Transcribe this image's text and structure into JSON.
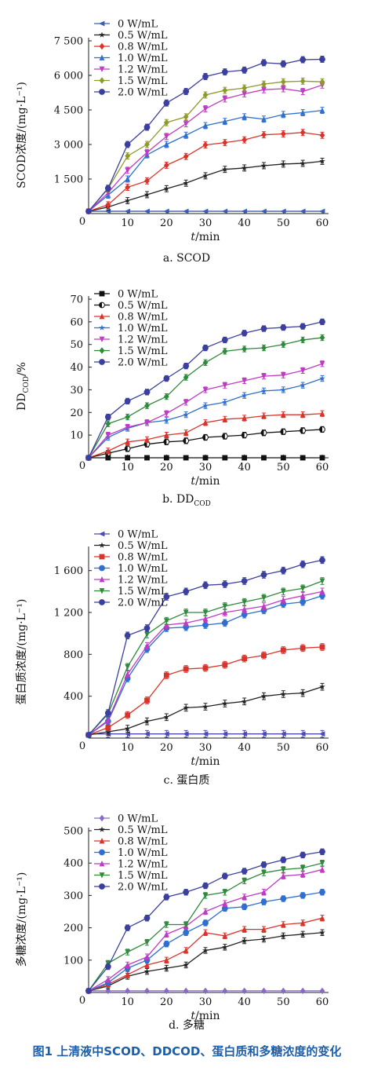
{
  "figure_caption": "图1 上清液中SCOD、DDCOD、蛋白质和多糖浓度的变化",
  "chart_data": [
    {
      "type": "line",
      "subtitle": "a. SCOD",
      "xlabel": "t/min",
      "ylabel": "SCOD浓度/(mg·L⁻¹)",
      "xlim": [
        0,
        60
      ],
      "ylim": [
        0,
        7500
      ],
      "xticks": [
        0,
        10,
        20,
        30,
        40,
        50,
        60
      ],
      "yticks": [
        0,
        1500,
        3000,
        4500,
        6000,
        7500
      ],
      "ytick_labels": [
        "0",
        "1 500",
        "3 000",
        "4 500",
        "6 000",
        "7 500"
      ],
      "legend_position": "top-left",
      "x": [
        0,
        5,
        10,
        15,
        20,
        25,
        30,
        35,
        40,
        45,
        50,
        55,
        60
      ],
      "series": [
        {
          "name": "0 W/mL",
          "color": "#3b5fb0",
          "marker": "tri-left",
          "values": [
            100,
            100,
            100,
            100,
            100,
            100,
            100,
            100,
            100,
            100,
            100,
            100,
            100
          ]
        },
        {
          "name": "0.5 W/mL",
          "color": "#222222",
          "marker": "star",
          "values": [
            100,
            280,
            560,
            820,
            1080,
            1320,
            1640,
            1920,
            1980,
            2080,
            2150,
            2180,
            2270
          ]
        },
        {
          "name": "0.8 W/mL",
          "color": "#d9342b",
          "marker": "diamond",
          "values": [
            100,
            380,
            1140,
            1420,
            2100,
            2480,
            2980,
            3080,
            3200,
            3420,
            3460,
            3520,
            3400
          ]
        },
        {
          "name": "1.0 W/mL",
          "color": "#2e6fcf",
          "marker": "triangle",
          "values": [
            100,
            800,
            1500,
            2550,
            3000,
            3400,
            3820,
            4000,
            4200,
            4100,
            4300,
            4380,
            4480
          ]
        },
        {
          "name": "1.2 W/mL",
          "color": "#c03bc3",
          "marker": "tri-down",
          "values": [
            100,
            900,
            1880,
            2650,
            3350,
            3900,
            4550,
            4980,
            5200,
            5380,
            5420,
            5300,
            5580
          ]
        },
        {
          "name": "1.5 W/mL",
          "color": "#8f9a2c",
          "marker": "diamond",
          "values": [
            100,
            1080,
            2500,
            3000,
            3950,
            4200,
            5150,
            5350,
            5450,
            5620,
            5720,
            5750,
            5720
          ]
        },
        {
          "name": "2.0 W/mL",
          "color": "#3b3f9e",
          "marker": "circle",
          "values": [
            100,
            1100,
            3000,
            3750,
            4800,
            5300,
            5950,
            6150,
            6230,
            6550,
            6500,
            6680,
            6700
          ]
        }
      ]
    },
    {
      "type": "line",
      "subtitle": "b. DD",
      "subtitle_sub": "COD",
      "xlabel": "t/min",
      "ylabel": "DD",
      "ylabel_sub": "COD",
      "ylabel_suffix": "/%",
      "xlim": [
        0,
        60
      ],
      "ylim": [
        0,
        70
      ],
      "xticks": [
        0,
        10,
        20,
        30,
        40,
        50,
        60
      ],
      "yticks": [
        0,
        10,
        20,
        30,
        40,
        50,
        60,
        70
      ],
      "ytick_labels": [
        "0",
        "10",
        "20",
        "30",
        "40",
        "50",
        "60",
        "70"
      ],
      "legend_position": "top-left",
      "x": [
        0,
        5,
        10,
        15,
        20,
        25,
        30,
        35,
        40,
        45,
        50,
        55,
        60
      ],
      "series": [
        {
          "name": "0 W/mL",
          "color": "#111111",
          "marker": "square",
          "values": [
            0,
            0,
            0,
            0,
            0,
            0,
            0,
            0,
            0,
            0,
            0,
            0,
            0
          ]
        },
        {
          "name": "0.5 W/mL",
          "color": "#111111",
          "marker": "circle-half",
          "values": [
            0,
            2,
            4,
            6,
            7,
            7.5,
            9,
            9.5,
            10,
            11,
            11.5,
            12,
            12.5
          ]
        },
        {
          "name": "0.8 W/mL",
          "color": "#d9342b",
          "marker": "triangle",
          "values": [
            0,
            3,
            7,
            8,
            10,
            11,
            15.5,
            17,
            17.5,
            18.5,
            19,
            19,
            19.5
          ]
        },
        {
          "name": "1.0 W/mL",
          "color": "#2e6fcf",
          "marker": "star",
          "values": [
            0,
            9,
            13,
            15.5,
            16.5,
            19,
            23,
            24.5,
            27.5,
            29.5,
            30,
            32,
            35
          ]
        },
        {
          "name": "1.2 W/mL",
          "color": "#c03bc3",
          "marker": "tri-down",
          "values": [
            0,
            10,
            13.5,
            15.5,
            19.5,
            24.5,
            30,
            32,
            34,
            36,
            36.5,
            38.5,
            41.5
          ]
        },
        {
          "name": "1.5 W/mL",
          "color": "#2f8a3c",
          "marker": "diamond",
          "values": [
            0,
            15,
            18,
            23,
            27,
            35.5,
            42,
            47,
            48,
            48.5,
            50,
            52,
            53
          ]
        },
        {
          "name": "2.0 W/mL",
          "color": "#3b3f9e",
          "marker": "circle",
          "values": [
            0,
            18,
            25,
            29,
            35,
            40.5,
            48.5,
            52,
            55,
            57,
            57.5,
            58,
            60
          ]
        }
      ]
    },
    {
      "type": "line",
      "subtitle": "c. 蛋白质",
      "xlabel": "t/min",
      "ylabel": "蛋白质浓度/(mg·L⁻¹)",
      "xlim": [
        0,
        60
      ],
      "ylim": [
        0,
        1800
      ],
      "xticks": [
        0,
        10,
        20,
        30,
        40,
        50,
        60
      ],
      "yticks": [
        0,
        400,
        800,
        1200,
        1600
      ],
      "ytick_labels": [
        "0",
        "400",
        "800",
        "1 200",
        "1 600"
      ],
      "legend_position": "top-left",
      "x": [
        0,
        5,
        10,
        15,
        20,
        25,
        30,
        35,
        40,
        45,
        50,
        55,
        60
      ],
      "series": [
        {
          "name": "0 W/mL",
          "color": "#4a4ab0",
          "marker": "tri-left",
          "values": [
            40,
            40,
            40,
            40,
            40,
            40,
            40,
            40,
            40,
            40,
            40,
            40,
            40
          ]
        },
        {
          "name": "0.5 W/mL",
          "color": "#222222",
          "marker": "star",
          "values": [
            30,
            60,
            90,
            160,
            200,
            290,
            300,
            330,
            350,
            400,
            420,
            430,
            490
          ]
        },
        {
          "name": "0.8 W/mL",
          "color": "#d9342b",
          "marker": "square",
          "values": [
            30,
            100,
            220,
            360,
            600,
            660,
            670,
            700,
            760,
            790,
            840,
            860,
            870
          ]
        },
        {
          "name": "1.0 W/mL",
          "color": "#2e6fcf",
          "marker": "circle",
          "values": [
            30,
            160,
            570,
            850,
            1050,
            1060,
            1080,
            1100,
            1180,
            1220,
            1280,
            1300,
            1360
          ]
        },
        {
          "name": "1.2 W/mL",
          "color": "#c03bc3",
          "marker": "triangle",
          "values": [
            30,
            170,
            610,
            880,
            1080,
            1100,
            1140,
            1200,
            1230,
            1260,
            1320,
            1360,
            1400
          ]
        },
        {
          "name": "1.5 W/mL",
          "color": "#2f8a3c",
          "marker": "tri-down",
          "values": [
            30,
            230,
            680,
            990,
            1120,
            1200,
            1200,
            1260,
            1300,
            1340,
            1400,
            1430,
            1500
          ]
        },
        {
          "name": "2.0 W/mL",
          "color": "#3b3f9e",
          "marker": "circle",
          "values": [
            30,
            240,
            980,
            1050,
            1350,
            1400,
            1460,
            1470,
            1500,
            1560,
            1600,
            1660,
            1700
          ]
        }
      ]
    },
    {
      "type": "line",
      "subtitle": "d. 多糖",
      "xlabel": "t/min",
      "ylabel": "多糖浓度/(mg·L⁻¹)",
      "xlim": [
        0,
        60
      ],
      "ylim": [
        0,
        500
      ],
      "xticks": [
        0,
        10,
        20,
        30,
        40,
        50,
        60
      ],
      "yticks": [
        0,
        100,
        200,
        300,
        400,
        500
      ],
      "ytick_labels": [
        "0",
        "100",
        "200",
        "300",
        "400",
        "500"
      ],
      "legend_position": "top-left",
      "x": [
        0,
        5,
        10,
        15,
        20,
        25,
        30,
        35,
        40,
        45,
        50,
        55,
        60
      ],
      "series": [
        {
          "name": "0 W/mL",
          "color": "#8a6ac8",
          "marker": "diamond",
          "values": [
            5,
            5,
            5,
            5,
            5,
            5,
            5,
            5,
            5,
            5,
            5,
            5,
            5
          ]
        },
        {
          "name": "0.5 W/mL",
          "color": "#222222",
          "marker": "star",
          "values": [
            5,
            20,
            50,
            65,
            75,
            85,
            130,
            140,
            160,
            165,
            175,
            180,
            185
          ]
        },
        {
          "name": "0.8 W/mL",
          "color": "#d9342b",
          "marker": "triangle",
          "values": [
            5,
            25,
            55,
            85,
            100,
            130,
            185,
            175,
            195,
            195,
            210,
            215,
            230
          ]
        },
        {
          "name": "1.0 W/mL",
          "color": "#2e6fcf",
          "marker": "circle",
          "values": [
            5,
            30,
            75,
            100,
            150,
            185,
            215,
            260,
            265,
            280,
            290,
            300,
            310
          ]
        },
        {
          "name": "1.2 W/mL",
          "color": "#c03bc3",
          "marker": "triangle",
          "values": [
            5,
            40,
            85,
            110,
            180,
            205,
            250,
            275,
            295,
            310,
            360,
            365,
            380
          ]
        },
        {
          "name": "1.5 W/mL",
          "color": "#2f8a3c",
          "marker": "tri-down",
          "values": [
            5,
            90,
            125,
            155,
            210,
            210,
            300,
            310,
            345,
            370,
            380,
            385,
            400
          ]
        },
        {
          "name": "2.0 W/mL",
          "color": "#3b3f9e",
          "marker": "circle",
          "values": [
            5,
            80,
            200,
            230,
            295,
            310,
            330,
            360,
            375,
            395,
            410,
            425,
            435
          ]
        }
      ]
    }
  ]
}
